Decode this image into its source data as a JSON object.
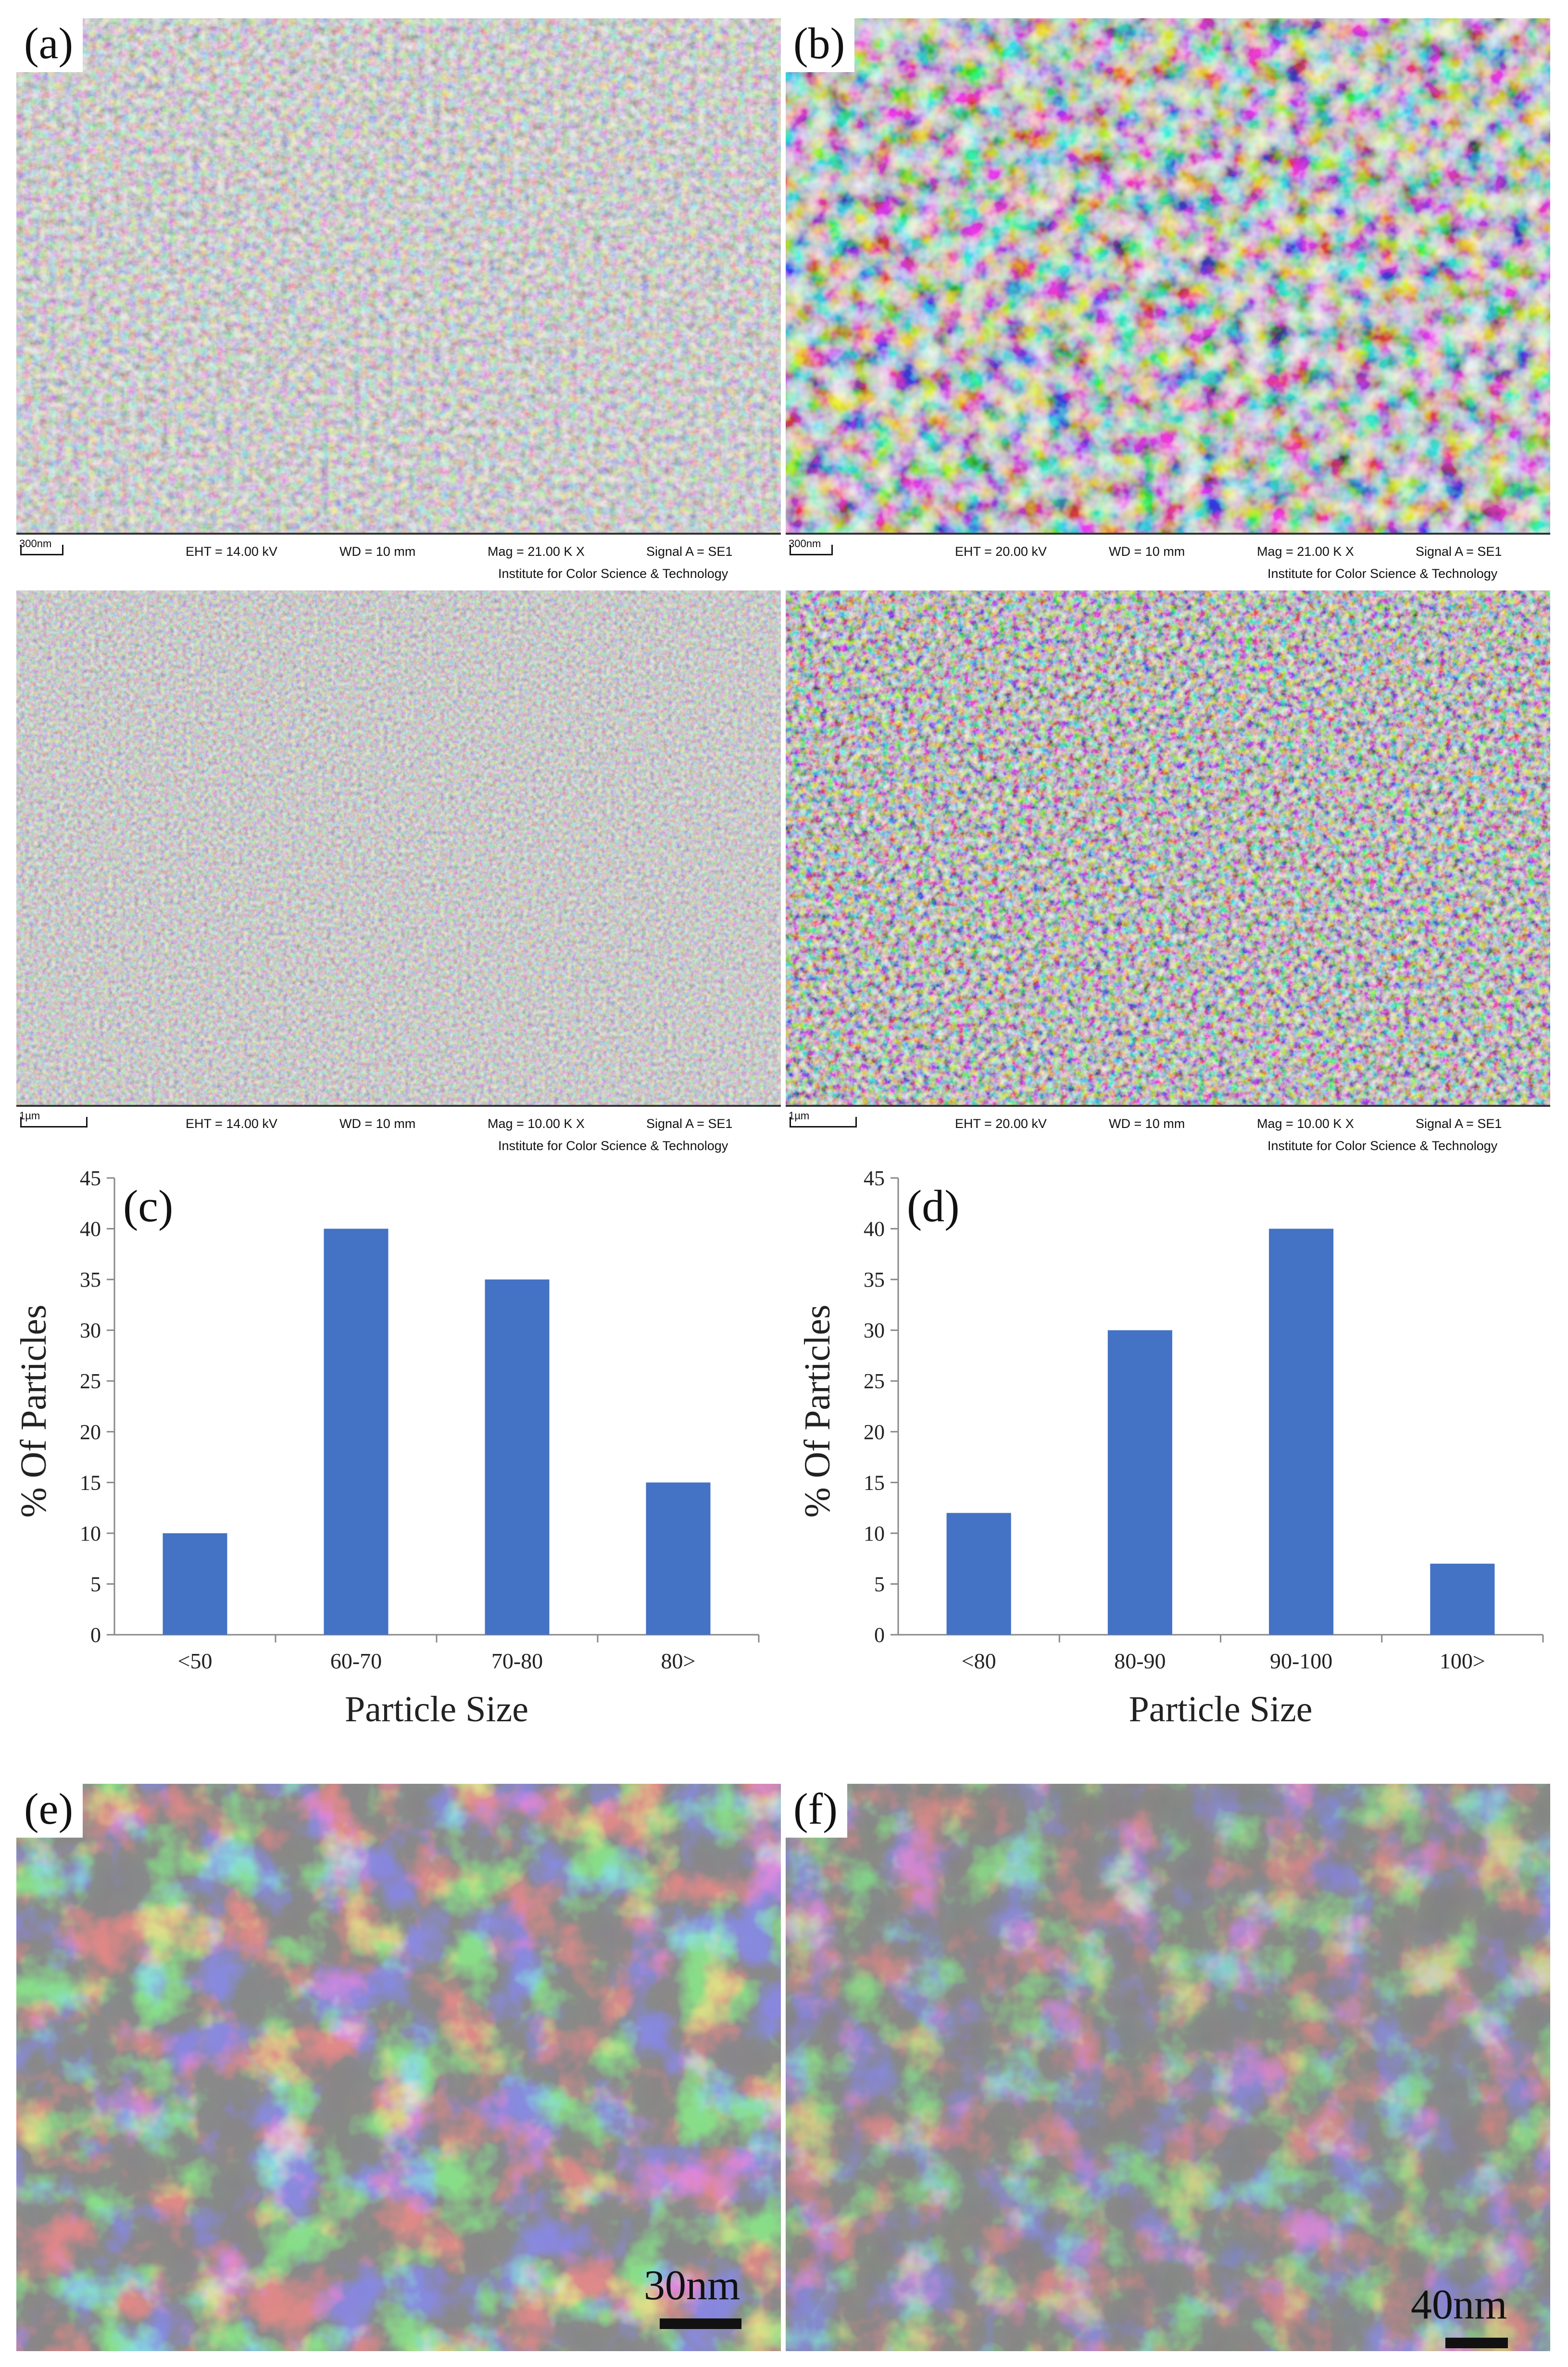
{
  "panels": {
    "a": {
      "label": "(a)",
      "scale": "300nm",
      "eht": "EHT = 14.00 kV",
      "wd": "WD =  10 mm",
      "mag": "Mag =  21.00 K X",
      "signal": "Signal A = SE1",
      "inst": "Institute for Color Science & Technology"
    },
    "b": {
      "label": "(b)",
      "scale": "300nm",
      "eht": "EHT = 20.00 kV",
      "wd": "WD =  10 mm",
      "mag": "Mag =  21.00 K X",
      "signal": "Signal A = SE1",
      "inst": "Institute for Color Science & Technology"
    },
    "a2": {
      "scale": "1µm",
      "eht": "EHT = 14.00 kV",
      "wd": "WD =  10 mm",
      "mag": "Mag =  10.00 K X",
      "signal": "Signal A = SE1",
      "inst": "Institute for Color Science & Technology"
    },
    "b2": {
      "scale": "1µm",
      "eht": "EHT = 20.00 kV",
      "wd": "WD =  10 mm",
      "mag": "Mag =  10.00 K X",
      "signal": "Signal A = SE1",
      "inst": "Institute for Color Science & Technology"
    },
    "e": {
      "label": "(e)",
      "scale": "30nm"
    },
    "f": {
      "label": "(f)",
      "scale": "40nm"
    }
  },
  "chart_data": [
    {
      "type": "bar",
      "panel_label": "(c)",
      "categories": [
        "<50",
        "60-70",
        "70-80",
        "80>"
      ],
      "values": [
        10,
        40,
        35,
        15
      ],
      "xlabel": "Particle Size",
      "ylabel": "% Of Particles",
      "ylim": [
        0,
        45
      ],
      "yticks": [
        0,
        5,
        10,
        15,
        20,
        25,
        30,
        35,
        40,
        45
      ],
      "grid": false,
      "bar_color": "#4472C4"
    },
    {
      "type": "bar",
      "panel_label": "(d)",
      "categories": [
        "<80",
        "80-90",
        "90-100",
        "100>"
      ],
      "values": [
        12,
        30,
        40,
        7
      ],
      "xlabel": "Particle Size",
      "ylabel": "% Of Particles",
      "ylim": [
        0,
        45
      ],
      "yticks": [
        0,
        5,
        10,
        15,
        20,
        25,
        30,
        35,
        40,
        45
      ],
      "grid": false,
      "bar_color": "#4472C4"
    }
  ],
  "colors": {
    "bar": "#4472C4",
    "sem_mid": "#8c8c8c",
    "tem_bg": "#b8b8b8",
    "tem_particle": "#3c3c3c"
  }
}
